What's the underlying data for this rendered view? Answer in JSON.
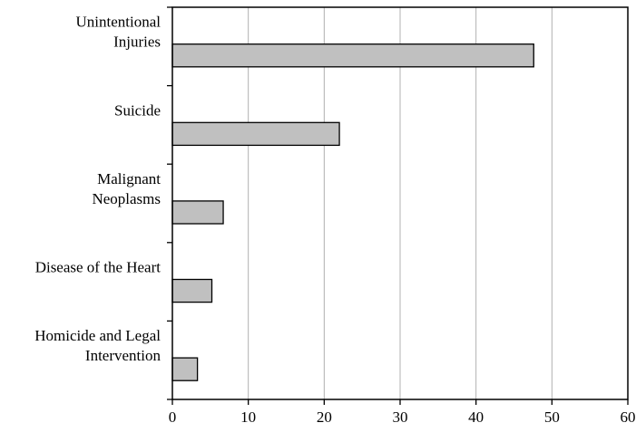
{
  "chart_data": {
    "type": "bar",
    "orientation": "horizontal",
    "title": "",
    "xlabel": "",
    "ylabel": "",
    "categories": [
      [
        "Unintentional",
        "Injuries"
      ],
      [
        "Suicide"
      ],
      [
        "Malignant",
        "Neoplasms"
      ],
      [
        "Disease of the Heart"
      ],
      [
        "Homicide and Legal",
        "Intervention"
      ]
    ],
    "values": [
      47.6,
      22.0,
      6.7,
      5.2,
      3.3
    ],
    "xlim": [
      0,
      60
    ],
    "xticks": [
      0,
      10,
      20,
      30,
      40,
      50,
      60
    ],
    "grid": "vertical",
    "legend": "none",
    "colors": {
      "bar_fill": "#c0c0c0",
      "bar_stroke": "#000000",
      "grid": "#b0b0b0",
      "axis": "#000000"
    }
  }
}
